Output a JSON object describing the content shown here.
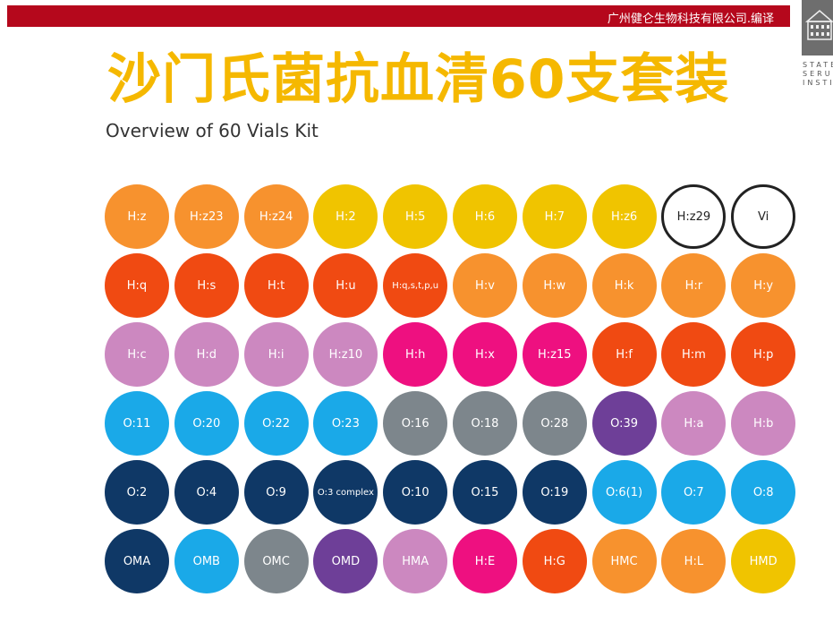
{
  "header": {
    "translator": "广州健仑生物科技有限公司.编译",
    "title": "沙门氏菌抗血清60支套装",
    "subtitle": "Overview of 60 Vials Kit"
  },
  "logo": {
    "text": [
      "STATENS",
      "SERUM",
      "INSTITUT"
    ]
  },
  "colors": {
    "orange": "#f7922e",
    "yellow": "#f0c400",
    "red": "#f04a12",
    "lilac": "#cc88c0",
    "magenta": "#ee1080",
    "cyan": "#1aa9e8",
    "gray": "#7d868c",
    "purple": "#6e3f98",
    "navy": "#0f3866"
  },
  "vials": [
    [
      {
        "l": "H:z",
        "c": "orange"
      },
      {
        "l": "H:z23",
        "c": "orange"
      },
      {
        "l": "H:z24",
        "c": "orange"
      },
      {
        "l": "H:2",
        "c": "yellow"
      },
      {
        "l": "H:5",
        "c": "yellow"
      },
      {
        "l": "H:6",
        "c": "yellow"
      },
      {
        "l": "H:7",
        "c": "yellow"
      },
      {
        "l": "H:z6",
        "c": "yellow"
      },
      {
        "l": "H:z29",
        "c": "outline"
      },
      {
        "l": "Vi",
        "c": "outline"
      }
    ],
    [
      {
        "l": "H:q",
        "c": "red"
      },
      {
        "l": "H:s",
        "c": "red"
      },
      {
        "l": "H:t",
        "c": "red"
      },
      {
        "l": "H:u",
        "c": "red"
      },
      {
        "l": "H:q,s,t,p,u",
        "c": "red"
      },
      {
        "l": "H:v",
        "c": "orange"
      },
      {
        "l": "H:w",
        "c": "orange"
      },
      {
        "l": "H:k",
        "c": "orange"
      },
      {
        "l": "H:r",
        "c": "orange"
      },
      {
        "l": "H:y",
        "c": "orange"
      }
    ],
    [
      {
        "l": "H:c",
        "c": "lilac"
      },
      {
        "l": "H:d",
        "c": "lilac"
      },
      {
        "l": "H:i",
        "c": "lilac"
      },
      {
        "l": "H:z10",
        "c": "lilac"
      },
      {
        "l": "H:h",
        "c": "magenta"
      },
      {
        "l": "H:x",
        "c": "magenta"
      },
      {
        "l": "H:z15",
        "c": "magenta"
      },
      {
        "l": "H:f",
        "c": "red"
      },
      {
        "l": "H:m",
        "c": "red"
      },
      {
        "l": "H:p",
        "c": "red"
      }
    ],
    [
      {
        "l": "O:11",
        "c": "cyan"
      },
      {
        "l": "O:20",
        "c": "cyan"
      },
      {
        "l": "O:22",
        "c": "cyan"
      },
      {
        "l": "O:23",
        "c": "cyan"
      },
      {
        "l": "O:16",
        "c": "gray"
      },
      {
        "l": "O:18",
        "c": "gray"
      },
      {
        "l": "O:28",
        "c": "gray"
      },
      {
        "l": "O:39",
        "c": "purple"
      },
      {
        "l": "H:a",
        "c": "lilac"
      },
      {
        "l": "H:b",
        "c": "lilac"
      }
    ],
    [
      {
        "l": "O:2",
        "c": "navy"
      },
      {
        "l": "O:4",
        "c": "navy"
      },
      {
        "l": "O:9",
        "c": "navy"
      },
      {
        "l": "O:3 complex",
        "c": "navy"
      },
      {
        "l": "O:10",
        "c": "navy"
      },
      {
        "l": "O:15",
        "c": "navy"
      },
      {
        "l": "O:19",
        "c": "navy"
      },
      {
        "l": "O:6(1)",
        "c": "cyan"
      },
      {
        "l": "O:7",
        "c": "cyan"
      },
      {
        "l": "O:8",
        "c": "cyan"
      }
    ],
    [
      {
        "l": "OMA",
        "c": "navy"
      },
      {
        "l": "OMB",
        "c": "cyan"
      },
      {
        "l": "OMC",
        "c": "gray"
      },
      {
        "l": "OMD",
        "c": "purple"
      },
      {
        "l": "HMA",
        "c": "lilac"
      },
      {
        "l": "H:E",
        "c": "magenta"
      },
      {
        "l": "H:G",
        "c": "red"
      },
      {
        "l": "HMC",
        "c": "orange"
      },
      {
        "l": "H:L",
        "c": "orange"
      },
      {
        "l": "HMD",
        "c": "yellow"
      }
    ]
  ]
}
